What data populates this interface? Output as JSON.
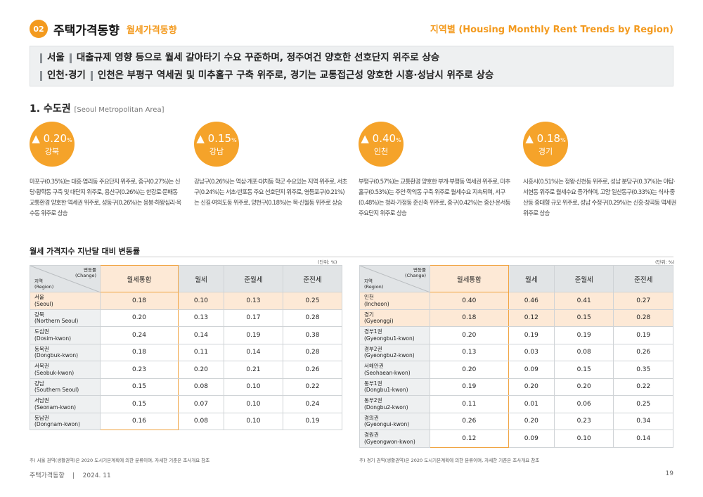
{
  "header": {
    "number": "02",
    "title": "주택가격동향",
    "subtitle": "월세가격동향",
    "right": "지역별 (Housing Monthly Rent Trends by Region)"
  },
  "summary": {
    "l1_region": "서울",
    "l1_text": "대출규제 영향 등으로 월세 갈아타기 수요 꾸준하며, 정주여건 양호한 선호단지 위주로 상승",
    "l2_region": "인천·경기",
    "l2_text": "인천은 부평구 역세권 및 미추홀구 구축 위주로, 경기는 교통접근성 양호한 시흥·성남시 위주로 상승"
  },
  "section": {
    "title": "1. 수도권",
    "sub": "[Seoul Metropolitan Area]"
  },
  "highlights": [
    {
      "arrow": "▲",
      "value": "0.20",
      "unit": "%",
      "region": "강북",
      "text": "마포구(0.35%)는 대흥·염리동 주요단지 위주로, 중구(0.27%)는 신당·황학동 구축 및 대단지 위주로, 용산구(0.26%)는 한강로·문배동 교통환경 양호한 역세권 위주로, 성동구(0.26%)는 응봉·하왕십리·옥수동 위주로 상승"
    },
    {
      "arrow": "▲",
      "value": "0.15",
      "unit": "%",
      "region": "강남",
      "text": "강남구(0.26%)는 역삼·개포·대치동 학군 수요있는 지역 위주로, 서초구(0.24%)는 서초·반포동 주요 선호단지 위주로, 영등포구(0.21%)는 신길·여의도동 위주로, 양천구(0.18%)는 목·신월동 위주로 상승"
    },
    {
      "arrow": "▲",
      "value": "0.40",
      "unit": "%",
      "region": "인천",
      "text": "부평구(0.57%)는 교통환경 양호한 부개·부평동 역세권 위주로, 미추홀구(0.53%)는 주안·학익동 구축 위주로 월세수요 지속되며, 서구(0.48%)는 청라·가정동 준신축 위주로, 중구(0.42%)는 중산·운서동 주요단지 위주로 상승"
    },
    {
      "arrow": "▲",
      "value": "0.18",
      "unit": "%",
      "region": "경기",
      "text": "시흥시(0.51%)는 정왕·신천동 위주로, 성남 분당구(0.37%)는 야탑·서현동 위주로 월세수요 증가하며, 고양 일산동구(0.33%)는 식사·중산동 중대형 규모 위주로, 성남 수정구(0.29%)는 신흥·창곡동 역세권 위주로 상승"
    }
  ],
  "table_title": "월세 가격지수 지난달 대비 변동률",
  "unit": "(단위: %)",
  "table_head": {
    "change": "변동률",
    "change_en": "(Change)",
    "region": "지역",
    "region_en": "(Region)",
    "cols": [
      "월세통합",
      "월세",
      "준월세",
      "준전세"
    ]
  },
  "left_rows": [
    {
      "ko": "서울",
      "en": "(Seoul)",
      "v": [
        "0.18",
        "0.10",
        "0.13",
        "0.25"
      ],
      "hl": true
    },
    {
      "ko": "강북",
      "en": "(Northern Seoul)",
      "v": [
        "0.20",
        "0.13",
        "0.17",
        "0.28"
      ],
      "hl": false
    },
    {
      "ko": "도심권",
      "en": "(Dosim-kwon)",
      "v": [
        "0.24",
        "0.14",
        "0.19",
        "0.38"
      ],
      "hl": false
    },
    {
      "ko": "동북권",
      "en": "(Dongbuk-kwon)",
      "v": [
        "0.18",
        "0.11",
        "0.14",
        "0.28"
      ],
      "hl": false
    },
    {
      "ko": "서북권",
      "en": "(Seobuk-kwon)",
      "v": [
        "0.23",
        "0.20",
        "0.21",
        "0.26"
      ],
      "hl": false
    },
    {
      "ko": "강남",
      "en": "(Southern Seoul)",
      "v": [
        "0.15",
        "0.08",
        "0.10",
        "0.22"
      ],
      "hl": false
    },
    {
      "ko": "서남권",
      "en": "(Seonam-kwon)",
      "v": [
        "0.15",
        "0.07",
        "0.10",
        "0.24"
      ],
      "hl": false
    },
    {
      "ko": "동남권",
      "en": "(Dongnam-kwon)",
      "v": [
        "0.16",
        "0.08",
        "0.10",
        "0.19"
      ],
      "hl": false
    }
  ],
  "right_rows": [
    {
      "ko": "인천",
      "en": "(Incheon)",
      "v": [
        "0.40",
        "0.46",
        "0.41",
        "0.27"
      ],
      "hl": true
    },
    {
      "ko": "경기",
      "en": "(Gyeonggi)",
      "v": [
        "0.18",
        "0.12",
        "0.15",
        "0.28"
      ],
      "hl": true
    },
    {
      "ko": "경부1권",
      "en": "(Gyeongbu1-kwon)",
      "v": [
        "0.20",
        "0.19",
        "0.19",
        "0.19"
      ],
      "hl": false
    },
    {
      "ko": "경부2권",
      "en": "(Gyeongbu2-kwon)",
      "v": [
        "0.13",
        "0.03",
        "0.08",
        "0.26"
      ],
      "hl": false
    },
    {
      "ko": "서해안권",
      "en": "(Seohaean-kwon)",
      "v": [
        "0.20",
        "0.09",
        "0.15",
        "0.35"
      ],
      "hl": false
    },
    {
      "ko": "동부1권",
      "en": "(Dongbu1-kwon)",
      "v": [
        "0.19",
        "0.20",
        "0.20",
        "0.22"
      ],
      "hl": false
    },
    {
      "ko": "동부2권",
      "en": "(Dongbu2-kwon)",
      "v": [
        "0.11",
        "0.01",
        "0.06",
        "0.25"
      ],
      "hl": false
    },
    {
      "ko": "경의권",
      "en": "(Gyeongui-kwon)",
      "v": [
        "0.26",
        "0.20",
        "0.23",
        "0.34"
      ],
      "hl": false
    },
    {
      "ko": "경원권",
      "en": "(Gyeongwon-kwon)",
      "v": [
        "0.12",
        "0.09",
        "0.10",
        "0.14"
      ],
      "hl": false
    }
  ],
  "note_left": "주) 서울 권역(생활권역)은 2020 도시기본계획에 의한 분류이며, 자세한 기준은 조사개요 참조",
  "note_right": "주) 경기 권역(생활권역)은 2020 도시기본계획에 의한 분류이며, 자세한 기준은 조사개요 참조",
  "footer": {
    "title": "주택가격동향",
    "sep": "|",
    "date": "2024. 11",
    "page": "19"
  },
  "colors": {
    "accent": "#f39a1e",
    "circle": "#f5a32a",
    "highlight": "#fde9d6"
  }
}
